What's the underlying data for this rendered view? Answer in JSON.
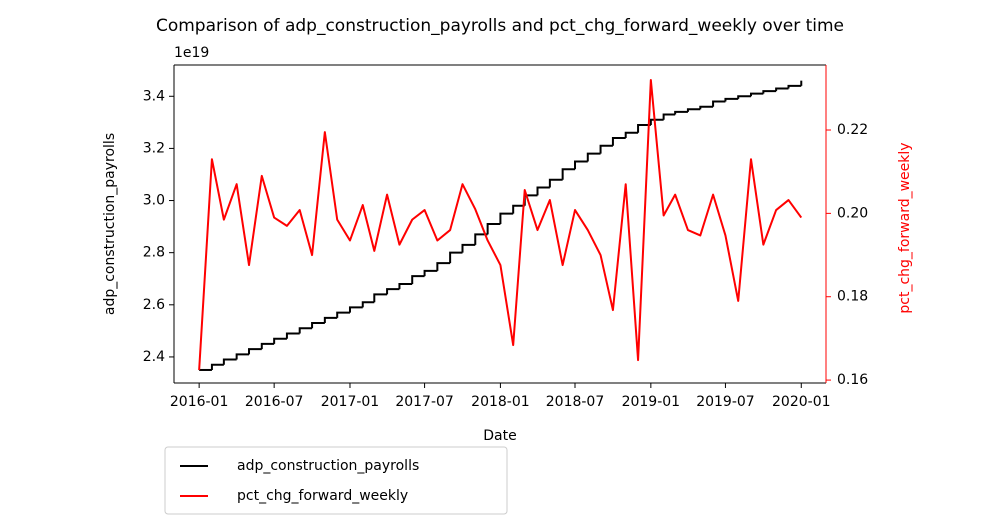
{
  "chart_data": {
    "type": "line",
    "title": "Comparison of adp_construction_payrolls and pct_chg_forward_weekly over time",
    "xlabel": "Date",
    "ylabel": "adp_construction_payrolls",
    "y2label": "pct_chg_forward_weekly",
    "y_offset_label": "1e19",
    "x": [
      "2016-01",
      "2016-02",
      "2016-03",
      "2016-04",
      "2016-05",
      "2016-06",
      "2016-07",
      "2016-08",
      "2016-09",
      "2016-10",
      "2016-11",
      "2016-12",
      "2017-01",
      "2017-02",
      "2017-03",
      "2017-04",
      "2017-05",
      "2017-06",
      "2017-07",
      "2017-08",
      "2017-09",
      "2017-10",
      "2017-11",
      "2017-12",
      "2018-01",
      "2018-02",
      "2018-03",
      "2018-04",
      "2018-05",
      "2018-06",
      "2018-07",
      "2018-08",
      "2018-09",
      "2018-10",
      "2018-11",
      "2018-12",
      "2019-01",
      "2019-02",
      "2019-03",
      "2019-04",
      "2019-05",
      "2019-06",
      "2019-07",
      "2019-08",
      "2019-09",
      "2019-10",
      "2019-11",
      "2019-12",
      "2020-01"
    ],
    "xlim": [
      "2015-11",
      "2020-03"
    ],
    "xticks": [
      "2016-01",
      "2016-07",
      "2017-01",
      "2017-07",
      "2018-01",
      "2018-07",
      "2019-01",
      "2019-07",
      "2020-01"
    ],
    "ylim": [
      2.3e+19,
      3.52e+19
    ],
    "yticks": [
      {
        "value": 2.4e+19,
        "label": "2.4"
      },
      {
        "value": 2.6e+19,
        "label": "2.6"
      },
      {
        "value": 2.8e+19,
        "label": "2.8"
      },
      {
        "value": 3e+19,
        "label": "3.0"
      },
      {
        "value": 3.2e+19,
        "label": "3.2"
      },
      {
        "value": 3.4e+19,
        "label": "3.4"
      }
    ],
    "y2lim": [
      0.1593,
      0.2356
    ],
    "y2ticks": [
      0.16,
      0.18,
      {
        "value": 0.2,
        "label": "0.20"
      },
      0.22
    ],
    "y2color": "#ff0000",
    "legend": "below left",
    "series": [
      {
        "name": "adp_construction_payrolls",
        "color": "#000000",
        "step": true,
        "values": [
          2.35e+19,
          2.37e+19,
          2.39e+19,
          2.41e+19,
          2.43e+19,
          2.45e+19,
          2.47e+19,
          2.49e+19,
          2.51e+19,
          2.53e+19,
          2.55e+19,
          2.57e+19,
          2.59e+19,
          2.61e+19,
          2.64e+19,
          2.66e+19,
          2.68e+19,
          2.71e+19,
          2.73e+19,
          2.76e+19,
          2.8e+19,
          2.83e+19,
          2.87e+19,
          2.91e+19,
          2.95e+19,
          2.98e+19,
          3.02e+19,
          3.05e+19,
          3.08e+19,
          3.12e+19,
          3.15e+19,
          3.18e+19,
          3.21e+19,
          3.24e+19,
          3.26e+19,
          3.29e+19,
          3.31e+19,
          3.33e+19,
          3.34e+19,
          3.35e+19,
          3.36e+19,
          3.38e+19,
          3.39e+19,
          3.4e+19,
          3.41e+19,
          3.42e+19,
          3.43e+19,
          3.44e+19,
          3.46e+19
        ]
      },
      {
        "name": "pct_chg_forward_weekly",
        "color": "#ff0000",
        "axis": "y2",
        "values": [
          0.1624,
          0.213,
          0.1985,
          0.207,
          0.1876,
          0.209,
          0.199,
          0.197,
          0.2008,
          0.19,
          0.2195,
          0.1985,
          0.1935,
          0.202,
          0.191,
          0.2045,
          0.1925,
          0.1985,
          0.2008,
          0.1935,
          0.196,
          0.207,
          0.201,
          0.1935,
          0.1876,
          0.1684,
          0.2056,
          0.196,
          0.2032,
          0.1876,
          0.2008,
          0.196,
          0.19,
          0.1768,
          0.207,
          0.1648,
          0.232,
          0.1995,
          0.2045,
          0.196,
          0.1947,
          0.2045,
          0.1947,
          0.179,
          0.213,
          0.1925,
          0.2008,
          0.2032,
          0.199
        ]
      }
    ]
  }
}
